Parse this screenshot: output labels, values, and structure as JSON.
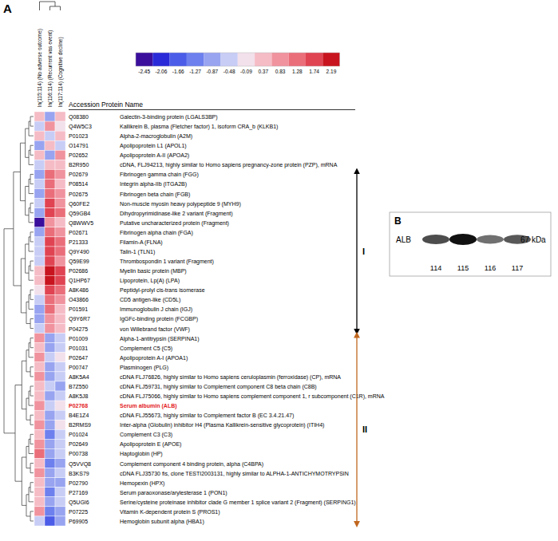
{
  "chart_data": {
    "type": "heatmap",
    "panel_label": "A",
    "columns": [
      "ln(115:114) (No adverse outcome)",
      "ln(116:114) (Recurrent vas event)",
      "ln(117:114) (Cognitive decline)"
    ],
    "header": "Accession Protein Name",
    "categories": [
      "Q08380",
      "Q4W5C3",
      "P01023",
      "O14791",
      "P02652",
      "B2R950",
      "P02679",
      "P08514",
      "P02675",
      "Q60FE2",
      "Q59GB4",
      "Q8WWV5",
      "P02671",
      "P21333",
      "Q9Y490",
      "Q59E99",
      "P02686",
      "Q1HP67",
      "A8K486",
      "O43866",
      "P01591",
      "Q9Y6R7",
      "P04275",
      "P01009",
      "P01031",
      "P02647",
      "P00747",
      "A8K5A4",
      "B7Z550",
      "A8K5J8",
      "P02768",
      "B4E1Z4",
      "B2RMS9",
      "P01024",
      "P02649",
      "P00738",
      "Q5VVQ8",
      "B3KS79",
      "P02790",
      "P27169",
      "Q5UGI6",
      "P07225",
      "P69905"
    ],
    "protein_names": [
      "Galectin-3-binding protein (LGALS3BP)",
      "Kallikrein B, plasma (Fletcher factor) 1, isoform CRA_b (KLKB1)",
      "Alpha-2-macroglobulin (A2M)",
      "Apolipoprotein L1 (APOL1)",
      "Apolipoprotein A-II (APOA2)",
      "cDNA, FLJ94213, highly similar to Homo sapiens pregnancy-zone protein (PZP), mRNA",
      "Fibrinogen gamma chain (FGG)",
      "Integrin alpha-IIb (ITGA2B)",
      "Fibrinogen beta chain (FGB)",
      "Non-muscle myosin heavy polypeptide 9 (MYH9)",
      "Dihydropyrimidinase-like 2 variant (Fragment)",
      "Putative uncharacterized protein (Fragment)",
      "Fibrinogen alpha chain (FGA)",
      "Filamin-A (FLNA)",
      "Talin-1 (TLN1)",
      "Thrombospondin 1 variant (Fragment)",
      "Myelin basic protein (MBP)",
      "Lipoprotein, Lp(A) (LPA)",
      "Peptidyl-prolyl cis-trans isomerase",
      "CD5 antigen-like (CD5L)",
      "Immunoglobulin J chain (IGJ)",
      "IgGFc-binding protein (FCGBP)",
      "von Willebrand factor (VWF)",
      "Alpha-1-antitrypsin (SERPINA1)",
      "Complement C5 (C5)",
      "Apolipoprotein A-I (APOA1)",
      "Plasminogen (PLG)",
      "cDNA FLJ76826, highly similar to Homo sapiens ceruloplasmin (ferroxidase) (CP), mRNA",
      "cDNA FLJ59731, highly similar to Complement component C8 beta chain (C8B)",
      "cDNA FLJ75066, highly similar to Homo sapiens complement component 1, r subcomponent (C1R), mRNA",
      "Serum albumin (ALB)",
      "cDNA FLJ55673, highly similar to Complement factor B (EC 3.4.21.47)",
      "Inter-alpha (Globulin) inhibitor H4 (Plasma Kallikrein-sensitive glycoprotein) (ITIH4)",
      "Complement C3 (C3)",
      "Apolipoprotein E (APOE)",
      "Haptoglobin (HP)",
      "Complement component 4 binding protein, alpha (C4BPA)",
      "cDNA FLJ35730 fis, clone TESTI2003131, highly similar to ALPHA-1-ANTICHYMOTRYPSIN",
      "Hemopexin (HPX)",
      "Serum paraoxonase/arylesterase 1 (PON1)",
      "Serine/cysteine proteinase inhibitor clade G member 1 splice variant 2 (Fragment) (SERPING1)",
      "Vitamin K-dependent protein S (PROS1)",
      "Hemoglobin subunit alpha (HBA1)"
    ],
    "highlight": "P02768",
    "cells": [
      [
        0.37,
        -0.87,
        0.37
      ],
      [
        -0.48,
        0.83,
        -0.09
      ],
      [
        0.37,
        -0.48,
        0.37
      ],
      [
        -0.87,
        0.37,
        -0.48
      ],
      [
        0.37,
        -0.87,
        0.83
      ],
      [
        -0.48,
        0.37,
        0.37
      ],
      [
        -0.87,
        1.28,
        0.83
      ],
      [
        -0.48,
        1.28,
        0.37
      ],
      [
        -0.87,
        1.28,
        0.83
      ],
      [
        -0.48,
        1.74,
        0.83
      ],
      [
        -0.87,
        1.74,
        1.28
      ],
      [
        -2.45,
        0.83,
        0.37
      ],
      [
        -0.87,
        1.28,
        0.83
      ],
      [
        -0.48,
        1.74,
        1.28
      ],
      [
        -0.48,
        1.74,
        1.28
      ],
      [
        -0.48,
        1.74,
        0.83
      ],
      [
        0.37,
        2.19,
        1.74
      ],
      [
        0.37,
        2.19,
        1.74
      ],
      [
        -0.09,
        1.74,
        1.28
      ],
      [
        -0.48,
        1.28,
        0.83
      ],
      [
        -0.87,
        1.28,
        0.37
      ],
      [
        -0.87,
        0.83,
        0.37
      ],
      [
        -0.48,
        0.83,
        0.37
      ],
      [
        0.83,
        -0.87,
        -0.48
      ],
      [
        0.37,
        -0.87,
        -0.48
      ],
      [
        0.83,
        -0.48,
        -0.09
      ],
      [
        0.37,
        -0.87,
        -0.48
      ],
      [
        0.83,
        -0.87,
        -0.48
      ],
      [
        0.37,
        -0.48,
        -0.87
      ],
      [
        0.37,
        -0.87,
        -0.48
      ],
      [
        0.83,
        -0.48,
        -0.09
      ],
      [
        0.37,
        -0.87,
        -0.48
      ],
      [
        0.83,
        -0.87,
        -0.09
      ],
      [
        0.37,
        -1.27,
        -0.48
      ],
      [
        0.83,
        -0.87,
        -0.48
      ],
      [
        1.28,
        -0.87,
        -0.48
      ],
      [
        0.37,
        -1.27,
        -0.87
      ],
      [
        0.83,
        -0.87,
        -0.48
      ],
      [
        0.37,
        -0.87,
        -0.87
      ],
      [
        0.37,
        -1.27,
        -0.48
      ],
      [
        0.37,
        -0.87,
        -0.48
      ],
      [
        0.83,
        -1.27,
        -0.87
      ],
      [
        -0.48,
        -1.66,
        -0.87
      ]
    ],
    "color_bar": {
      "range": [
        -2.45,
        2.19
      ],
      "ticks": [
        -2.45,
        -2.06,
        -1.66,
        -1.27,
        -0.87,
        -0.48,
        -0.09,
        0.37,
        0.83,
        1.28,
        1.74,
        2.19
      ],
      "colors": [
        "#3b0f9c",
        "#2a2ad8",
        "#4b5ce8",
        "#6d80ee",
        "#98a4f0",
        "#c8cdf6",
        "#f2e0ea",
        "#f5bcc6",
        "#f0939e",
        "#ea6e7a",
        "#e04452",
        "#c8141e"
      ]
    },
    "clusters": [
      {
        "label": "I",
        "start": 6,
        "end": 22,
        "color": "#000000"
      },
      {
        "label": "II",
        "start": 23,
        "end": 42,
        "color": "#c0661e"
      }
    ],
    "inset": {
      "label": "B",
      "protein": "ALB",
      "size": "67 kDa",
      "lanes": [
        "114",
        "115",
        "116",
        "117"
      ],
      "band_intensity": [
        0.75,
        1.0,
        0.6,
        0.7
      ]
    }
  }
}
